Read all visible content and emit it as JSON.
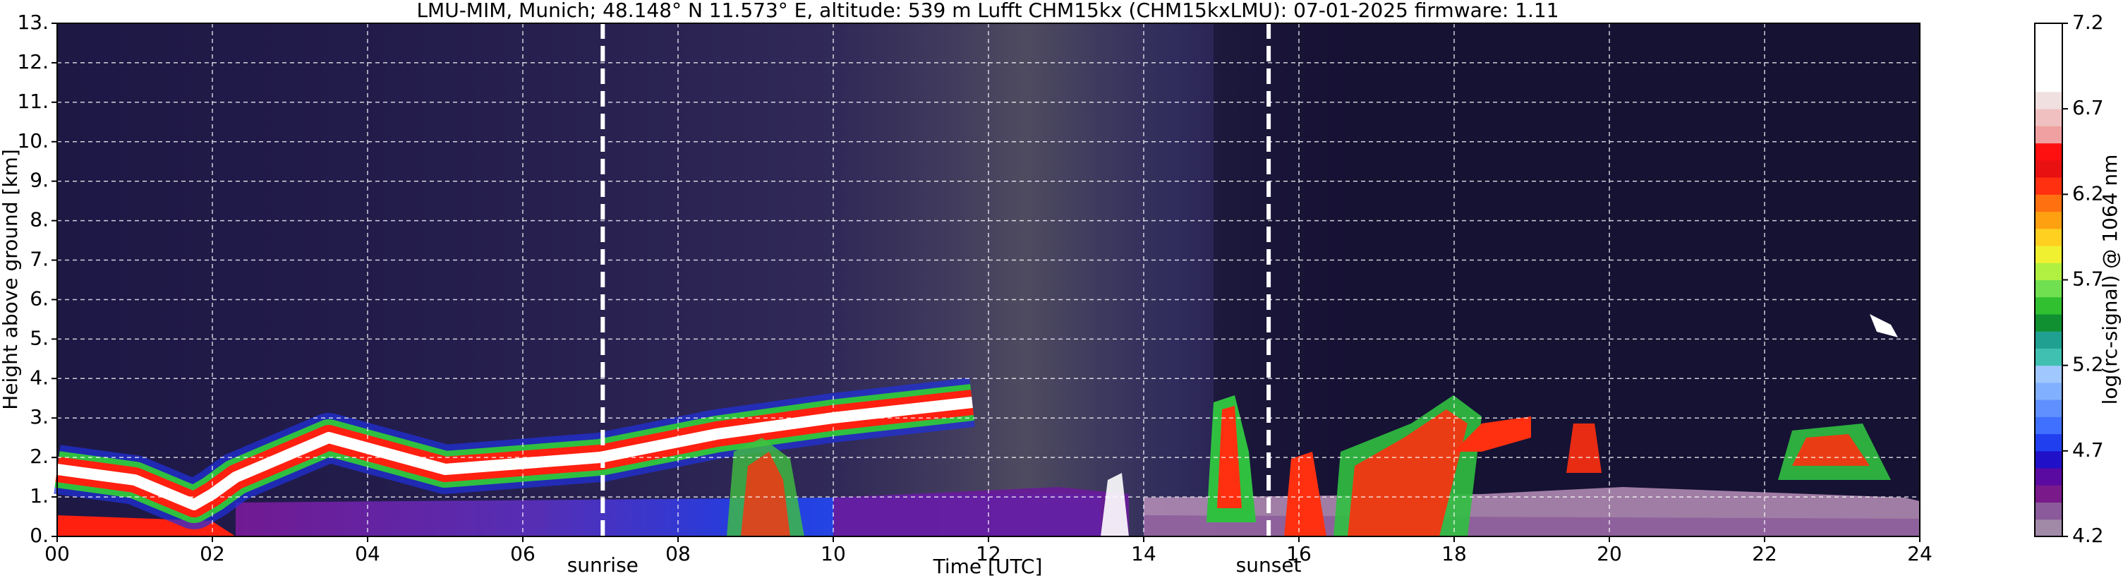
{
  "chart_data": {
    "type": "heatmap",
    "title": "LMU-MIM, Munich; 48.148° N 11.573° E, altitude: 539 m    Lufft CHM15kx (CHM15kxLMU): 07-01-2025    firmware: 1.11",
    "xlabel": "Time [UTC]",
    "ylabel": "Height above ground [km]",
    "xlim": [
      0,
      24
    ],
    "xticks": [
      {
        "value": 0,
        "label": "00"
      },
      {
        "value": 2,
        "label": "02"
      },
      {
        "value": 4,
        "label": "04"
      },
      {
        "value": 6,
        "label": "06"
      },
      {
        "value": 8,
        "label": "08"
      },
      10,
      12,
      14,
      16,
      18,
      20,
      22,
      24
    ],
    "ylim": [
      0,
      13
    ],
    "yticks": [
      {
        "value": 0,
        "label": "0."
      },
      {
        "value": 1,
        "label": "1."
      },
      {
        "value": 2,
        "label": "2."
      },
      {
        "value": 3,
        "label": "3."
      },
      {
        "value": 4,
        "label": "4."
      },
      {
        "value": 5,
        "label": "5."
      },
      {
        "value": 6,
        "label": "6."
      },
      {
        "value": 7,
        "label": "7."
      },
      {
        "value": 8,
        "label": "8."
      },
      {
        "value": 9,
        "label": "9."
      },
      {
        "value": 10,
        "label": "10."
      },
      {
        "value": 11,
        "label": "11."
      },
      {
        "value": 12,
        "label": "12."
      },
      {
        "value": 13,
        "label": "13."
      }
    ],
    "grid": true,
    "annotations": [
      {
        "x": 7.03,
        "label": "sunrise"
      },
      {
        "x": 15.61,
        "label": "sunset"
      }
    ],
    "colorbar": {
      "label": "log(rc-signal) @ 1064 nm",
      "lim": [
        4.2,
        7.2
      ],
      "ticks": [
        4.2,
        4.7,
        5.2,
        5.7,
        6.2,
        6.7,
        7.2
      ],
      "colors": [
        "#a08aa8",
        "#8a5a9a",
        "#7a1a8a",
        "#5a0aa0",
        "#2010c8",
        "#2040f0",
        "#4070ff",
        "#6090ff",
        "#80b0ff",
        "#a0c8ff",
        "#40c0b0",
        "#20a090",
        "#109030",
        "#30c030",
        "#70e050",
        "#b0f040",
        "#f0f030",
        "#ffd020",
        "#ffa010",
        "#ff7010",
        "#ff3010",
        "#e81010",
        "#ff1010",
        "#f0a0a0",
        "#f0c0c0",
        "#f0e0e0",
        "#ffffff",
        "#ffffff",
        "#ffffff",
        "#ffffff"
      ]
    }
  }
}
